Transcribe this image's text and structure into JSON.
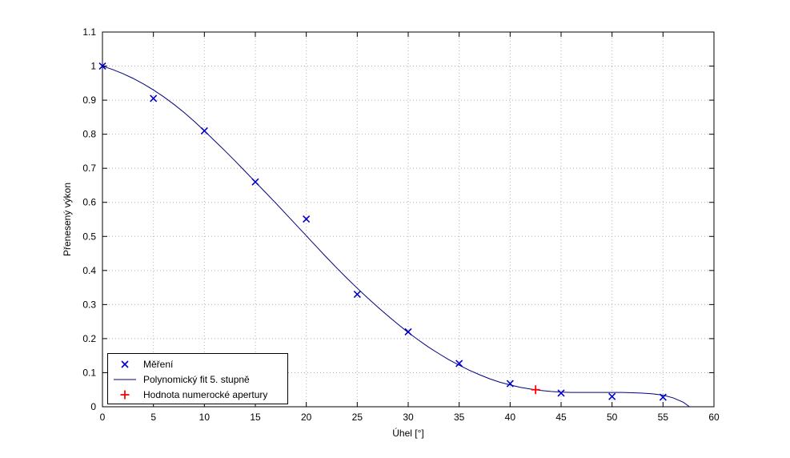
{
  "chart_data": {
    "type": "scatter",
    "title": "",
    "xlabel": "Úhel [°]",
    "ylabel": "Přenesený výkon",
    "xlim": [
      0,
      60
    ],
    "ylim": [
      0,
      1.1
    ],
    "xticks": [
      0,
      5,
      10,
      15,
      20,
      25,
      30,
      35,
      40,
      45,
      50,
      55,
      60
    ],
    "yticks": [
      0,
      0.1,
      0.2,
      0.3,
      0.4,
      0.5,
      0.6,
      0.7,
      0.8,
      0.9,
      1,
      1.1
    ],
    "grid": true,
    "legend_position": "bottom-left",
    "series": [
      {
        "name": "Měření",
        "type": "scatter",
        "marker": "x",
        "color": "#0000cc",
        "x": [
          0,
          5,
          10,
          15,
          20,
          25,
          30,
          35,
          40,
          45,
          50,
          55
        ],
        "y": [
          1.0,
          0.905,
          0.81,
          0.66,
          0.551,
          0.33,
          0.22,
          0.127,
          0.068,
          0.04,
          0.03,
          0.028
        ]
      },
      {
        "name": "Polynomický fit 5. stupně",
        "type": "line",
        "color": "#000080",
        "x": [
          0,
          1,
          2,
          3,
          4,
          5,
          6,
          7,
          8,
          9,
          10,
          11,
          12,
          13,
          14,
          15,
          16,
          17,
          18,
          19,
          20,
          21,
          22,
          23,
          24,
          25,
          26,
          27,
          28,
          29,
          30,
          31,
          32,
          33,
          34,
          35,
          36,
          37,
          38,
          39,
          40,
          41,
          42,
          43,
          44,
          45,
          46,
          47,
          48,
          49,
          50,
          51,
          52,
          53,
          54,
          55,
          56,
          57,
          57.6
        ],
        "y": [
          1.0,
          0.99,
          0.978,
          0.964,
          0.948,
          0.93,
          0.91,
          0.888,
          0.864,
          0.838,
          0.81,
          0.781,
          0.752,
          0.722,
          0.691,
          0.66,
          0.629,
          0.598,
          0.566,
          0.534,
          0.502,
          0.47,
          0.438,
          0.407,
          0.377,
          0.348,
          0.32,
          0.293,
          0.267,
          0.242,
          0.218,
          0.196,
          0.175,
          0.156,
          0.138,
          0.122,
          0.107,
          0.094,
          0.082,
          0.072,
          0.064,
          0.057,
          0.052,
          0.048,
          0.045,
          0.043,
          0.042,
          0.042,
          0.042,
          0.042,
          0.042,
          0.042,
          0.041,
          0.04,
          0.038,
          0.034,
          0.026,
          0.013,
          0.0
        ]
      },
      {
        "name": "Hodnota numerocké apertury",
        "type": "scatter",
        "marker": "+",
        "color": "#ff0000",
        "x": [
          42.5
        ],
        "y": [
          0.05
        ]
      }
    ]
  }
}
